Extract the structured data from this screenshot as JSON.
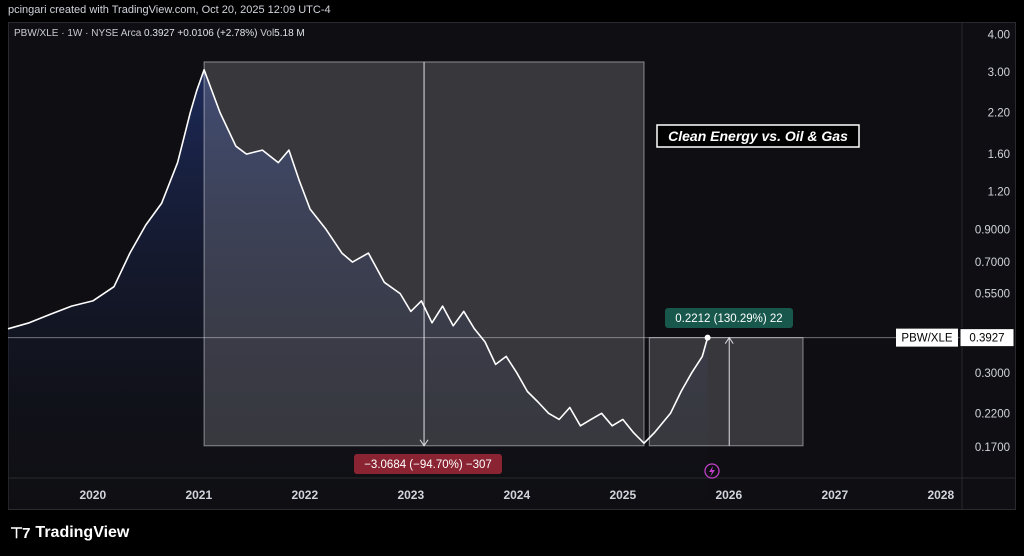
{
  "header": {
    "credit": "pcingari created with TradingView.com, Oct 20, 2025 12:09 UTC-4"
  },
  "legend": {
    "symbol": "PBW/XLE · 1W · NYSE Arca",
    "price": "0.3927",
    "change": "+0.0106 (+2.78%)",
    "vol_label": "Vol",
    "vol_value": "5.18 M"
  },
  "annotation_title": "Clean Energy vs. Oil & Gas",
  "measure_down_label": "−3.0684 (−94.70%) −307",
  "measure_up_label": "0.2212 (130.29%) 22",
  "price_tag": {
    "symbol": "PBW/XLE",
    "value": "0.3927"
  },
  "event_icon": "lightning-icon",
  "footer": {
    "brand": "TradingView",
    "brand_icon": "tradingview-logo-icon"
  },
  "colors": {
    "background": "#0f0f13",
    "line": "#ffffff",
    "fill_top": "#1e2c5e",
    "measure_down": "#8a2433",
    "measure_up": "#17574c",
    "event": "#c040c8"
  },
  "chart_data": {
    "type": "area",
    "title": "Clean Energy vs. Oil & Gas",
    "xlabel": "",
    "ylabel": "",
    "y_scale": "log",
    "x_ticks": [
      "2020",
      "2021",
      "2022",
      "2023",
      "2024",
      "2025",
      "2026",
      "2027",
      "2028"
    ],
    "y_ticks": [
      "4.00",
      "3.00",
      "2.20",
      "1.60",
      "1.20",
      "0.9000",
      "0.7000",
      "0.5500",
      "0.3000",
      "0.2200",
      "0.1700"
    ],
    "series": [
      {
        "x": [
          2019.2,
          2019.4,
          2019.6,
          2019.8,
          2020.0,
          2020.2,
          2020.35,
          2020.5,
          2020.65,
          2020.8,
          2020.92,
          2020.98,
          2021.05,
          2021.2,
          2021.35,
          2021.45,
          2021.6,
          2021.75,
          2021.85,
          2021.95,
          2022.05,
          2022.2,
          2022.35,
          2022.45,
          2022.6,
          2022.75,
          2022.9,
          2023.0,
          2023.1,
          2023.2,
          2023.3,
          2023.4,
          2023.5,
          2023.6,
          2023.7,
          2023.8,
          2023.9,
          2024.0,
          2024.1,
          2024.2,
          2024.3,
          2024.4,
          2024.5,
          2024.6,
          2024.7,
          2024.8,
          2024.9,
          2025.0,
          2025.1,
          2025.2,
          2025.3,
          2025.45,
          2025.55,
          2025.65,
          2025.75,
          2025.8
        ],
        "y": [
          0.42,
          0.44,
          0.47,
          0.5,
          0.52,
          0.58,
          0.75,
          0.93,
          1.1,
          1.5,
          2.2,
          2.6,
          3.05,
          2.2,
          1.7,
          1.6,
          1.65,
          1.5,
          1.65,
          1.3,
          1.05,
          0.9,
          0.75,
          0.7,
          0.75,
          0.6,
          0.55,
          0.48,
          0.52,
          0.44,
          0.5,
          0.43,
          0.48,
          0.42,
          0.38,
          0.32,
          0.34,
          0.3,
          0.26,
          0.24,
          0.22,
          0.21,
          0.23,
          0.2,
          0.21,
          0.22,
          0.2,
          0.21,
          0.19,
          0.175,
          0.19,
          0.22,
          0.26,
          0.3,
          0.34,
          0.3927
        ]
      }
    ],
    "measure_down": {
      "from": 3.24,
      "to": 0.1716,
      "x_start": 2021.05,
      "x_end": 2025.2
    },
    "measure_up": {
      "from": 0.1716,
      "to": 0.3927,
      "x_start": 2025.25,
      "x_end": 2026.7
    },
    "last_value": 0.3927,
    "grid": false
  }
}
